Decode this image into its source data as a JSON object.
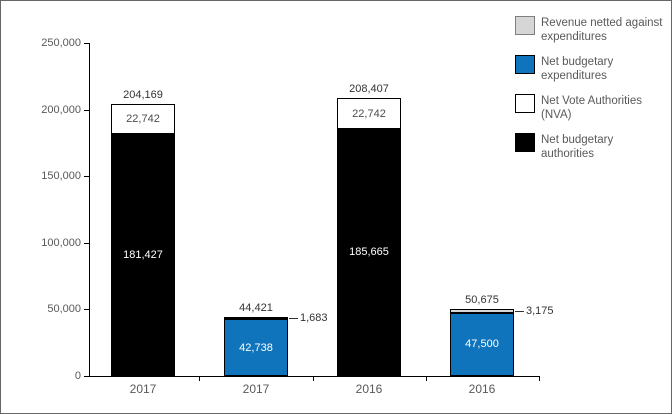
{
  "chart_data": {
    "type": "bar",
    "stacked": true,
    "title": "",
    "xlabel": "",
    "ylabel": "",
    "grid": false,
    "legend_position": "top-right",
    "ylim": [
      0,
      250000
    ],
    "yticks": [
      {
        "value": 0,
        "label": "0"
      },
      {
        "value": 50000,
        "label": "50,000"
      },
      {
        "value": 100000,
        "label": "100,000"
      },
      {
        "value": 150000,
        "label": "150,000"
      },
      {
        "value": 200000,
        "label": "200,000"
      },
      {
        "value": 250000,
        "label": "250,000"
      }
    ],
    "categories": [
      "2017",
      "2017",
      "2016",
      "2016"
    ],
    "legend": [
      {
        "label": "Revenue netted against expenditures",
        "color": "#d6d6d6",
        "border": "#7f7f7f"
      },
      {
        "label": "Net budgetary expenditures",
        "color": "#0f74bc",
        "border": "#000000"
      },
      {
        "label": "Net Vote Authorities (NVA)",
        "color": "#ffffff",
        "border": "#000000"
      },
      {
        "label": "Net budgetary authorities",
        "color": "#000000",
        "border": "#000000"
      }
    ],
    "bars": [
      {
        "category": "2017",
        "total": 204169,
        "total_label": "204,169",
        "segments": [
          {
            "series": "Net budgetary authorities",
            "value": 181427,
            "label": "181,427",
            "color": "#000000",
            "label_color": "#ffffff",
            "placement": "inside"
          },
          {
            "series": "Net Vote Authorities (NVA)",
            "value": 22742,
            "label": "22,742",
            "color": "#ffffff",
            "label_color": "#4d4d4d",
            "placement": "inside"
          }
        ]
      },
      {
        "category": "2017",
        "total": 44421,
        "total_label": "44,421",
        "segments": [
          {
            "series": "Net budgetary expenditures",
            "value": 42738,
            "label": "42,738",
            "color": "#0f74bc",
            "label_color": "#ffffff",
            "placement": "inside"
          },
          {
            "series": "Revenue netted against expenditures",
            "value": 1683,
            "label": "1,683",
            "color": "#d6d6d6",
            "label_color": "#333333",
            "placement": "callout"
          }
        ]
      },
      {
        "category": "2016",
        "total": 208407,
        "total_label": "208,407",
        "segments": [
          {
            "series": "Net budgetary authorities",
            "value": 185665,
            "label": "185,665",
            "color": "#000000",
            "label_color": "#ffffff",
            "placement": "inside"
          },
          {
            "series": "Net Vote Authorities (NVA)",
            "value": 22742,
            "label": "22,742",
            "color": "#ffffff",
            "label_color": "#4d4d4d",
            "placement": "inside"
          }
        ]
      },
      {
        "category": "2016",
        "total": 50675,
        "total_label": "50,675",
        "segments": [
          {
            "series": "Net budgetary expenditures",
            "value": 47500,
            "label": "47,500",
            "color": "#0f74bc",
            "label_color": "#ffffff",
            "placement": "inside"
          },
          {
            "series": "Revenue netted against expenditures",
            "value": 3175,
            "label": "3,175",
            "color": "#d6d6d6",
            "label_color": "#333333",
            "placement": "callout"
          }
        ]
      }
    ],
    "colors": {
      "axis": "#000000",
      "tick_label": "#595959",
      "total_label": "#333333",
      "bar_border": "#000000"
    }
  }
}
